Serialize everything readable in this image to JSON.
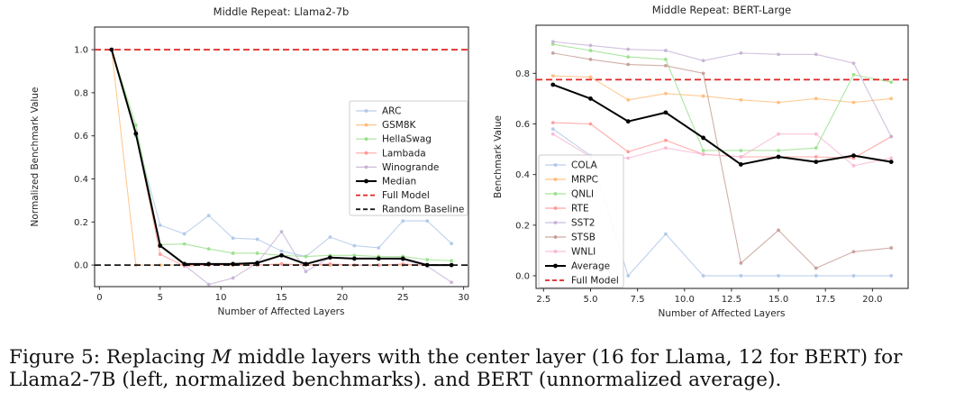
{
  "page": {
    "background": "#ffffff"
  },
  "caption": {
    "line1_pre": "Figure 5: Replacing ",
    "line1_italic": "M",
    "line1_post": " middle layers with the center layer (16 for Llama, 12 for BERT) for",
    "line2": "Llama2-7B (left, normalized benchmarks). and BERT (unnormalized average)."
  },
  "colors": {
    "full_model_red": "#e02525",
    "random_baseline_black": "#1a1a1a",
    "axis_text": "#262626",
    "spine": "#2e2e2e"
  },
  "chart_data": [
    {
      "id": "llama",
      "type": "line",
      "title": "Middle Repeat: Llama2-7b",
      "xlabel": "Number of Affected Layers",
      "ylabel": "Normalized Benchmark Value",
      "xlim": [
        -0.4,
        30.4
      ],
      "ylim": [
        -0.1,
        1.105
      ],
      "grid": false,
      "legend_position": "center right",
      "xticks": {
        "values": [
          0,
          5,
          10,
          15,
          20,
          25,
          30
        ],
        "labels": [
          "0",
          "5",
          "10",
          "15",
          "20",
          "25",
          "30"
        ]
      },
      "yticks": {
        "values": [
          0.0,
          0.2,
          0.4,
          0.6,
          0.8,
          1.0
        ],
        "labels": [
          "0.0",
          "0.2",
          "0.4",
          "0.6",
          "0.8",
          "1.0"
        ]
      },
      "x": [
        1,
        3,
        5,
        7,
        9,
        11,
        13,
        15,
        17,
        19,
        21,
        23,
        25,
        27,
        29
      ],
      "series": [
        {
          "name": "ARC",
          "color": "#aec7e8",
          "emphasis": false,
          "values": [
            1.0,
            0.6,
            0.185,
            0.145,
            0.23,
            0.125,
            0.12,
            0.065,
            0.04,
            0.13,
            0.09,
            0.08,
            0.205,
            0.205,
            0.1
          ]
        },
        {
          "name": "GSM8K",
          "color": "#ffbb78",
          "emphasis": false,
          "values": [
            1.0,
            0.0,
            0.0,
            0.0,
            0.0,
            0.0,
            0.0,
            0.005,
            0.0,
            0.0,
            0.0,
            0.0,
            0.0,
            0.0,
            0.0
          ]
        },
        {
          "name": "HellaSwag",
          "color": "#98df8a",
          "emphasis": false,
          "values": [
            1.0,
            0.65,
            0.095,
            0.098,
            0.075,
            0.055,
            0.055,
            0.045,
            0.04,
            0.045,
            0.045,
            0.04,
            0.04,
            0.025,
            0.02
          ]
        },
        {
          "name": "Lambada",
          "color": "#ff9896",
          "emphasis": false,
          "values": [
            1.0,
            0.61,
            0.05,
            -0.005,
            0.0,
            0.0,
            0.0,
            0.005,
            0.0,
            0.005,
            0.0,
            0.0,
            0.005,
            0.0,
            0.0
          ]
        },
        {
          "name": "Winogrande",
          "color": "#c5b0d5",
          "emphasis": false,
          "values": [
            1.0,
            0.62,
            0.09,
            0.0,
            -0.09,
            -0.06,
            0.01,
            0.155,
            -0.03,
            0.035,
            0.03,
            0.03,
            0.025,
            -0.005,
            -0.08
          ]
        },
        {
          "name": "Median",
          "color": "#000000",
          "emphasis": true,
          "values": [
            1.0,
            0.61,
            0.09,
            0.005,
            0.005,
            0.005,
            0.01,
            0.045,
            0.005,
            0.035,
            0.03,
            0.03,
            0.03,
            0.0,
            0.0
          ]
        }
      ],
      "hlines": [
        {
          "label": "Full Model",
          "y": 1.0,
          "color": "#e02525"
        },
        {
          "label": "Random Baseline",
          "y": 0.0,
          "color": "#1a1a1a"
        }
      ]
    },
    {
      "id": "bert",
      "type": "line",
      "title": "Middle Repeat: BERT-Large",
      "xlabel": "Number of Affected Layers",
      "ylabel": "Benchmark Value",
      "xlim": [
        2.1,
        21.9
      ],
      "ylim": [
        -0.05,
        0.99
      ],
      "grid": false,
      "legend_position": "lower left",
      "xticks": {
        "values": [
          2.5,
          5.0,
          7.5,
          10.0,
          12.5,
          15.0,
          17.5,
          20.0
        ],
        "labels": [
          "2.5",
          "5.0",
          "7.5",
          "10.0",
          "12.5",
          "15.0",
          "17.5",
          "20.0"
        ]
      },
      "yticks": {
        "values": [
          0.0,
          0.2,
          0.4,
          0.6,
          0.8
        ],
        "labels": [
          "0.0",
          "0.2",
          "0.4",
          "0.6",
          "0.8"
        ]
      },
      "x": [
        3,
        5,
        7,
        9,
        11,
        13,
        15,
        17,
        19,
        21
      ],
      "series": [
        {
          "name": "COLA",
          "color": "#aec7e8",
          "emphasis": false,
          "values": [
            0.58,
            0.475,
            0.0,
            0.165,
            0.0,
            0.0,
            0.0,
            0.0,
            0.0,
            0.0
          ]
        },
        {
          "name": "MRPC",
          "color": "#ffbb78",
          "emphasis": false,
          "values": [
            0.79,
            0.785,
            0.695,
            0.72,
            0.71,
            0.695,
            0.685,
            0.7,
            0.685,
            0.7
          ]
        },
        {
          "name": "QNLI",
          "color": "#98df8a",
          "emphasis": false,
          "values": [
            0.915,
            0.89,
            0.865,
            0.855,
            0.495,
            0.495,
            0.495,
            0.505,
            0.795,
            0.765
          ]
        },
        {
          "name": "RTE",
          "color": "#ff9896",
          "emphasis": false,
          "values": [
            0.605,
            0.6,
            0.49,
            0.535,
            0.48,
            0.47,
            0.47,
            0.47,
            0.465,
            0.55
          ]
        },
        {
          "name": "SST2",
          "color": "#c5b0d5",
          "emphasis": false,
          "values": [
            0.925,
            0.91,
            0.895,
            0.89,
            0.85,
            0.88,
            0.875,
            0.875,
            0.84,
            0.55
          ]
        },
        {
          "name": "STSB",
          "color": "#c49c94",
          "emphasis": false,
          "values": [
            0.88,
            0.855,
            0.835,
            0.83,
            0.8,
            0.05,
            0.18,
            0.03,
            0.095,
            0.11
          ]
        },
        {
          "name": "WNLI",
          "color": "#f7b6d2",
          "emphasis": false,
          "values": [
            0.56,
            0.47,
            0.465,
            0.505,
            0.48,
            0.47,
            0.56,
            0.56,
            0.435,
            0.465
          ]
        },
        {
          "name": "Average",
          "color": "#000000",
          "emphasis": true,
          "values": [
            0.755,
            0.7,
            0.61,
            0.645,
            0.545,
            0.44,
            0.47,
            0.45,
            0.475,
            0.45
          ]
        }
      ],
      "hlines": [
        {
          "label": "Full Model",
          "y": 0.775,
          "color": "#e02525"
        }
      ]
    }
  ]
}
